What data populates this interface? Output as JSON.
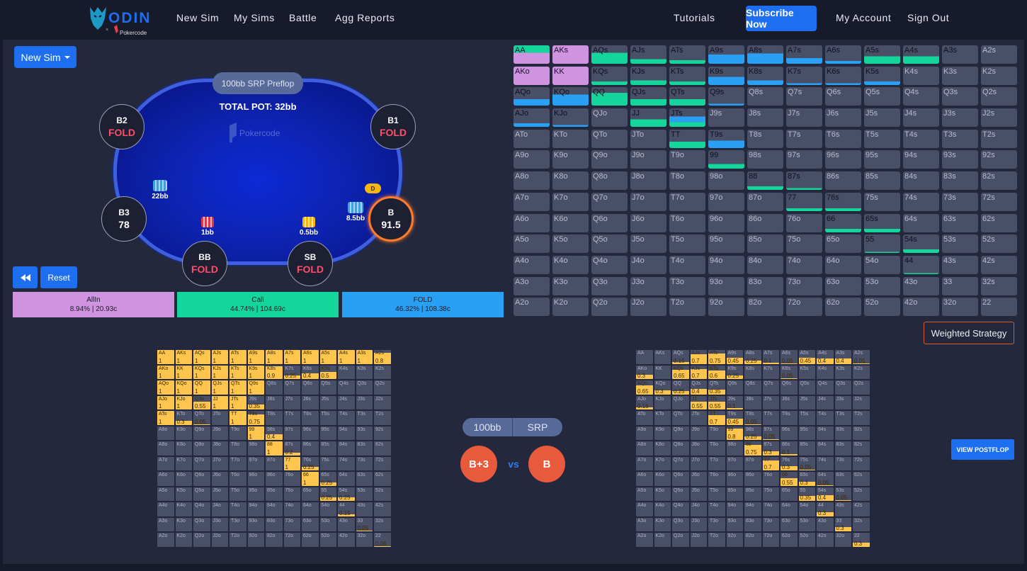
{
  "nav": {
    "items": [
      "New Sim",
      "My Sims",
      "Battle",
      "Agg Reports"
    ],
    "tutorials": "Tutorials",
    "subscribe": "Subscribe Now",
    "account": "My Account",
    "signout": "Sign Out",
    "logo_text": "ODIN",
    "logo_sub": "Pokercode"
  },
  "toolbar": {
    "new_sim": "New Sim",
    "reset": "Reset"
  },
  "table": {
    "label": "100bb SRP Preflop",
    "pot": "TOTAL POT: 32bb",
    "felt_brand": "Pokercode",
    "seats": {
      "b2": {
        "name": "B2",
        "status": "FOLD"
      },
      "b1": {
        "name": "B1",
        "status": "FOLD"
      },
      "b3": {
        "name": "B3",
        "status": "78"
      },
      "bb": {
        "name": "BB",
        "status": "FOLD"
      },
      "sb": {
        "name": "SB",
        "status": "FOLD"
      },
      "b": {
        "name": "B",
        "status": "91.5"
      }
    },
    "chips": {
      "b3": "22bb",
      "bb": "1bb",
      "sb": "0.5bb",
      "b": "8.5bb"
    },
    "dealer": "D"
  },
  "actions": [
    {
      "name": "AllIn",
      "stats": "8.94% | 20.93c",
      "color": "#cf93df"
    },
    {
      "name": "Call",
      "stats": "44.74% | 104.69c",
      "color": "#14d59a"
    },
    {
      "name": "FOLD",
      "stats": "46.32% | 108.38c",
      "color": "#2aa0f5"
    }
  ],
  "weighted": "Weighted Strategy",
  "matchup": {
    "stack": "100bb",
    "pot_type": "SRP",
    "hero": "B+3",
    "vs": "vs",
    "villain": "B"
  },
  "view_postflop": "VIEW POSTFLOP",
  "hands": [
    "AA",
    "AKs",
    "AQs",
    "AJs",
    "ATs",
    "A9s",
    "A8s",
    "A7s",
    "A6s",
    "A5s",
    "A4s",
    "A3s",
    "A2s",
    "AKo",
    "KK",
    "KQs",
    "KJs",
    "KTs",
    "K9s",
    "K8s",
    "K7s",
    "K6s",
    "K5s",
    "K4s",
    "K3s",
    "K2s",
    "AQo",
    "KQo",
    "QQ",
    "QJs",
    "QTs",
    "Q9s",
    "Q8s",
    "Q7s",
    "Q6s",
    "Q5s",
    "Q4s",
    "Q3s",
    "Q2s",
    "AJo",
    "KJo",
    "QJo",
    "JJ",
    "JTs",
    "J9s",
    "J8s",
    "J7s",
    "J6s",
    "J5s",
    "J4s",
    "J3s",
    "J2s",
    "ATo",
    "KTo",
    "QTo",
    "JTo",
    "TT",
    "T9s",
    "T8s",
    "T7s",
    "T6s",
    "T5s",
    "T4s",
    "T3s",
    "T2s",
    "A9o",
    "K9o",
    "Q9o",
    "J9o",
    "T9o",
    "99",
    "98s",
    "97s",
    "96s",
    "95s",
    "94s",
    "93s",
    "92s",
    "A8o",
    "K8o",
    "Q8o",
    "J8o",
    "T8o",
    "98o",
    "88",
    "87s",
    "86s",
    "85s",
    "84s",
    "83s",
    "82s",
    "A7o",
    "K7o",
    "Q7o",
    "J7o",
    "T7o",
    "97o",
    "87o",
    "77",
    "76s",
    "75s",
    "74s",
    "73s",
    "72s",
    "A6o",
    "K6o",
    "Q6o",
    "J6o",
    "T6o",
    "96o",
    "86o",
    "76o",
    "66",
    "65s",
    "64s",
    "63s",
    "62s",
    "A5o",
    "K5o",
    "Q5o",
    "J5o",
    "T5o",
    "95o",
    "85o",
    "75o",
    "65o",
    "55",
    "54s",
    "53s",
    "52s",
    "A4o",
    "K4o",
    "Q4o",
    "J4o",
    "T4o",
    "94o",
    "84o",
    "74o",
    "64o",
    "54o",
    "44",
    "43s",
    "42s",
    "A3o",
    "K3o",
    "Q3o",
    "J3o",
    "T3o",
    "93o",
    "83o",
    "73o",
    "63o",
    "53o",
    "43o",
    "33",
    "32s",
    "A2o",
    "K2o",
    "Q2o",
    "J2o",
    "T2o",
    "92o",
    "82o",
    "72o",
    "62o",
    "52o",
    "42o",
    "32o",
    "22"
  ],
  "strategy": {
    "AA": {
      "allin": 0.6,
      "call": 0.4,
      "fold": 0
    },
    "AKs": {
      "allin": 1,
      "call": 0,
      "fold": 0
    },
    "AQs": {
      "allin": 0,
      "call": 0.6,
      "fold": 0
    },
    "AJs": {
      "allin": 0,
      "call": 0.25,
      "fold": 0
    },
    "ATs": {
      "allin": 0,
      "call": 0.2,
      "fold": 0
    },
    "A9s": {
      "allin": 0,
      "call": 0,
      "fold": 0.5
    },
    "A8s": {
      "allin": 0,
      "call": 0,
      "fold": 0.55
    },
    "A7s": {
      "allin": 0,
      "call": 0,
      "fold": 0.3
    },
    "A6s": {
      "allin": 0,
      "call": 0,
      "fold": 0.15
    },
    "A5s": {
      "allin": 0,
      "call": 0.4,
      "fold": 0
    },
    "A4s": {
      "allin": 0,
      "call": 0.4,
      "fold": 0
    },
    "A3s": {
      "allin": 0,
      "call": 0,
      "fold": 0
    },
    "AKo": {
      "allin": 1,
      "call": 0,
      "fold": 0
    },
    "KK": {
      "allin": 1,
      "call": 0,
      "fold": 0
    },
    "KQs": {
      "allin": 0,
      "call": 0.2,
      "fold": 0
    },
    "KJs": {
      "allin": 0,
      "call": 0.25,
      "fold": 0
    },
    "KTs": {
      "allin": 0,
      "call": 0.2,
      "fold": 0
    },
    "K9s": {
      "allin": 0,
      "call": 0,
      "fold": 0.45
    },
    "K8s": {
      "allin": 0,
      "call": 0,
      "fold": 0.25
    },
    "K7s": {
      "allin": 0,
      "call": 0,
      "fold": 0.1
    },
    "K6s": {
      "allin": 0,
      "call": 0,
      "fold": 0.1
    },
    "K5s": {
      "allin": 0,
      "call": 0,
      "fold": 0.2
    },
    "AQo": {
      "allin": 0,
      "call": 0,
      "fold": 0.35
    },
    "KQo": {
      "allin": 0,
      "call": 0,
      "fold": 0.6
    },
    "QQ": {
      "allin": 0,
      "call": 0.7,
      "fold": 0
    },
    "QJs": {
      "allin": 0,
      "call": 0.35,
      "fold": 0
    },
    "QTs": {
      "allin": 0,
      "call": 0.35,
      "fold": 0
    },
    "Q9s": {
      "allin": 0,
      "call": 0,
      "fold": 0.1
    },
    "AJo": {
      "allin": 0,
      "call": 0,
      "fold": 0.2
    },
    "KJo": {
      "allin": 0,
      "call": 0,
      "fold": 0.1
    },
    "JJ": {
      "allin": 0,
      "call": 0.4,
      "fold": 0
    },
    "JTs": {
      "allin": 0,
      "call": 0.25,
      "fold": 0.3
    },
    "TT": {
      "allin": 0,
      "call": 0.35,
      "fold": 0
    },
    "T9s": {
      "allin": 0,
      "call": 0,
      "fold": 0.4
    },
    "99": {
      "allin": 0,
      "call": 0.25,
      "fold": 0
    },
    "88": {
      "allin": 0,
      "call": 0.2,
      "fold": 0
    },
    "87s": {
      "allin": 0,
      "call": 0.1,
      "fold": 0
    },
    "77": {
      "allin": 0,
      "call": 0.15,
      "fold": 0
    },
    "76s": {
      "allin": 0,
      "call": 0.15,
      "fold": 0
    },
    "66": {
      "allin": 0,
      "call": 0.2,
      "fold": 0
    },
    "65s": {
      "allin": 0,
      "call": 0.2,
      "fold": 0
    },
    "55": {
      "allin": 0,
      "call": 0.05,
      "fold": 0
    },
    "54s": {
      "allin": 0,
      "call": 0.2,
      "fold": 0
    },
    "44": {
      "allin": 0,
      "call": 0.05,
      "fold": 0
    }
  },
  "left_freqs": {
    "AA": "1",
    "AKs": "1",
    "AQs": "1",
    "AJs": "1",
    "ATs": "1",
    "A9s": "1",
    "A8s": "1",
    "A7s": "1",
    "A6s": "1",
    "A5s": "1",
    "A4s": "1",
    "A3s": "1",
    "A2s": "0.8",
    "AKo": "1",
    "KK": "1",
    "KQs": "1",
    "KJs": "1",
    "KTs": "1",
    "K9s": "1",
    "K8s": "0.9",
    "K7s": "0.25",
    "K6s": "0.4",
    "K5s": "0.5",
    "AQo": "1",
    "KQo": "1",
    "QQ": "1",
    "QJs": "1",
    "QTs": "1",
    "Q9s": "1",
    "AJo": "1",
    "KJo": "1",
    "QJo": "0.55",
    "JJ": "1",
    "JTs": "1",
    "J9s": "0.35",
    "ATo": "1",
    "KTo": "0.3",
    "QTo": "0.05",
    "TT": "1",
    "T9s": "0.75",
    "99": "1",
    "98s": "0.4",
    "88": "1",
    "87s": "0.2",
    "77": "1",
    "76s": "0.25",
    "66": "1",
    "65s": "0.25",
    "55": "0.25",
    "54s": "0.25",
    "44": "0.15",
    "33": "0.05",
    "22": "0.05"
  },
  "right_freqs": {
    "AQs": "0.15",
    "AJs": "0.7",
    "ATs": "0.75",
    "A9s": "0.45",
    "A8s": "0.25",
    "A7s": "0.1",
    "A6s": "0.05",
    "A5s": "0.45",
    "A4s": "0.4",
    "A3s": "0.4",
    "A2s": "0.05",
    "AKo": "0.3",
    "KQs": "0.65",
    "KJs": "0.7",
    "KTs": "0.6",
    "K9s": "0.25",
    "K6s": "0.05",
    "AQo": "0.65",
    "KQo": "0.3",
    "QQ": "0.25",
    "QJs": "0.4",
    "QTs": "0.35",
    "AJo": "0.15",
    "JJ": "0.55",
    "JTs": "0.55",
    "J9s": "0.1",
    "TT": "0.7",
    "T9s": "0.45",
    "T8s": "0.05",
    "99": "0.8",
    "98s": "0.25",
    "97s": "0.05",
    "88": "0.75",
    "87s": "0.3",
    "86s": "0.1",
    "77": "0.7",
    "76s": "0.3",
    "75s": "0.05",
    "66": "0.55",
    "65s": "0.3",
    "64s": "0.05",
    "55": "0.35",
    "54s": "0.4",
    "53s": "0.05",
    "44": "0.3",
    "33": "0.3",
    "22": "0.3"
  }
}
